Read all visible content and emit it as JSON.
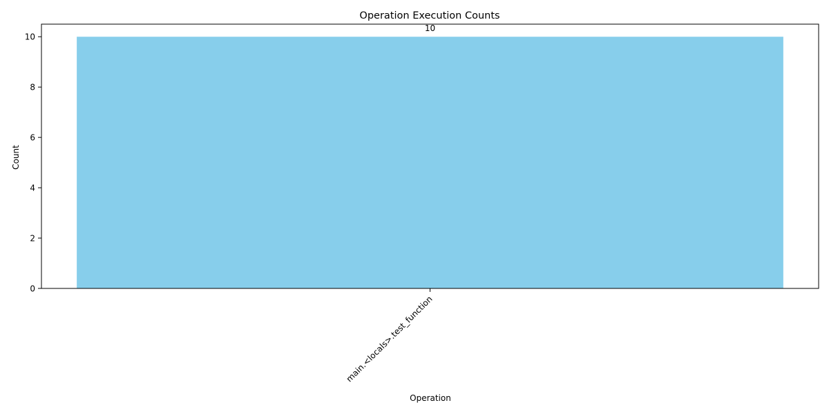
{
  "chart_data": {
    "type": "bar",
    "title": "Operation Execution Counts",
    "xlabel": "Operation",
    "ylabel": "Count",
    "categories": [
      "main.<locals>.test_function"
    ],
    "values": [
      10
    ],
    "data_labels": [
      "10"
    ],
    "ylim": [
      0,
      10.5
    ],
    "yticks": [
      0,
      2,
      4,
      6,
      8,
      10
    ],
    "x_tick_rotation": 45,
    "grid": false,
    "legend": "none",
    "colors": {
      "bar": "#87ceeb",
      "axes": "#000000",
      "background": "#ffffff"
    }
  }
}
